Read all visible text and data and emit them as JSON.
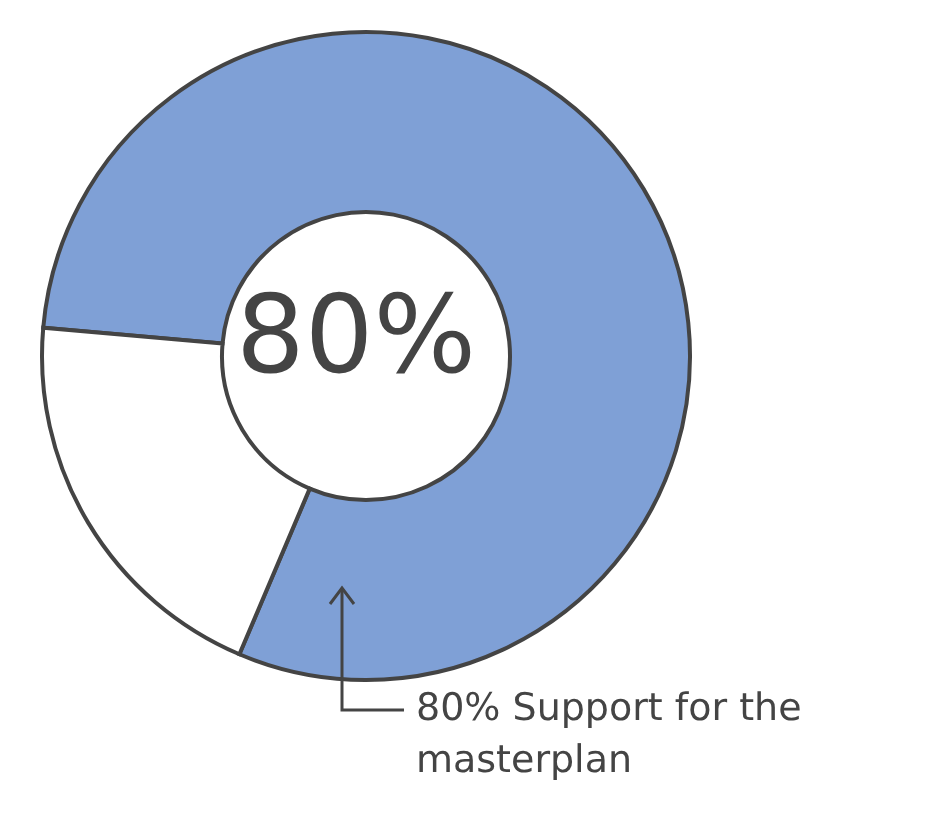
{
  "chart_data": {
    "type": "donut",
    "categories": [
      null,
      null
    ],
    "values": [
      80,
      20
    ],
    "colors": [
      "#7fa0d6",
      "#ffffff"
    ],
    "annotations": [
      "80%",
      "80% Support for the masterplan"
    ]
  }
}
